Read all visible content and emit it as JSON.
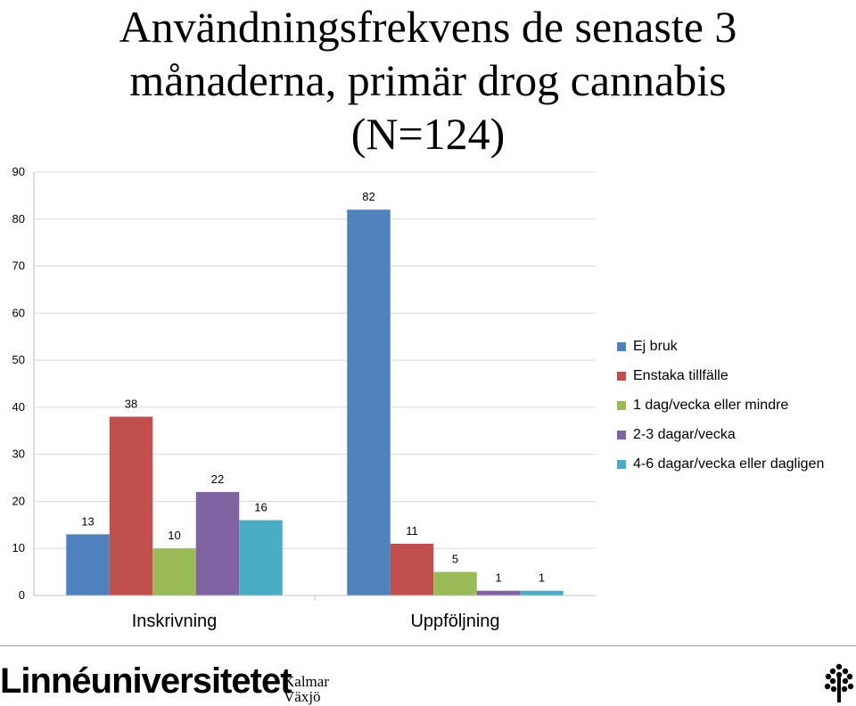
{
  "title_lines": [
    "Användningsfrekvens de senaste 3",
    "månaderna, primär drog cannabis",
    "(N=124)"
  ],
  "chart_data": {
    "type": "bar",
    "title": "Användningsfrekvens de senaste 3 månaderna, primär drog cannabis (N=124)",
    "categories": [
      "Inskrivning",
      "Uppföljning"
    ],
    "series": [
      {
        "name": "Ej bruk",
        "color": "#4f81bd",
        "values": [
          13,
          82
        ]
      },
      {
        "name": "Enstaka tillfälle",
        "color": "#c0504d",
        "values": [
          38,
          11
        ]
      },
      {
        "name": "1 dag/vecka eller mindre",
        "color": "#9bbb59",
        "values": [
          10,
          5
        ]
      },
      {
        "name": "2-3 dagar/vecka",
        "color": "#8064a2",
        "values": [
          22,
          1
        ]
      },
      {
        "name": "4-6 dagar/vecka eller dagligen",
        "color": "#4bacc6",
        "values": [
          16,
          1
        ]
      }
    ],
    "ylim": [
      0,
      90
    ],
    "yticks": [
      0,
      10,
      20,
      30,
      40,
      50,
      60,
      70,
      80,
      90
    ],
    "grid": true,
    "legend_position": "right"
  },
  "footer": {
    "logo_text": "Linnéuniversitetet",
    "city_line1": "Kalmar",
    "city_line2": "Växjö",
    "tree_icon": "tree-icon"
  }
}
